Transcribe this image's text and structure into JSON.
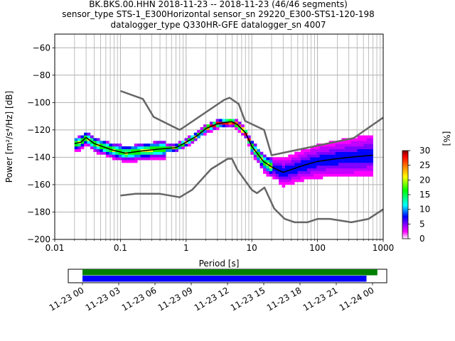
{
  "title": {
    "line1": "BK.BKS.00.HHN   2018-11-23 -- 2018-11-23  (46/46 segments)",
    "line2": "sensor_type STS-1_E300Horizontal sensor_sn 29220_E300-STS1-120-198",
    "line3": "datalogger_type Q330HR-GFE datalogger_sn 4007"
  },
  "chart_data": [
    {
      "type": "heatmap",
      "subtype": "ppsd",
      "xlabel": "Period [s]",
      "ylabel": "Power [m²/s⁴/Hz] [dB]",
      "xscale": "log",
      "xlim": [
        0.01,
        1000
      ],
      "ylim": [
        -200,
        -50
      ],
      "x_ticks": [
        0.01,
        0.1,
        1,
        10,
        100,
        1000
      ],
      "x_tick_labels": [
        "0.01",
        "0.1",
        "1",
        "10",
        "100",
        "1000"
      ],
      "y_ticks": [
        -200,
        -180,
        -160,
        -140,
        -120,
        -100,
        -80,
        -60
      ],
      "y_tick_labels": [
        "−200",
        "−180",
        "−160",
        "−140",
        "−120",
        "−100",
        "−80",
        "−60"
      ],
      "grid": true,
      "colorbar": {
        "label": "[%]",
        "range": [
          0,
          30
        ],
        "ticks": [
          0,
          5,
          10,
          15,
          20,
          25,
          30
        ],
        "tick_labels": [
          "0",
          "5",
          "10",
          "15",
          "20",
          "25",
          "30"
        ],
        "colors": [
          "#ffffff",
          "#ff00ff",
          "#0000ff",
          "#00ffff",
          "#00ff00",
          "#ffff00",
          "#ff8000",
          "#ff0000",
          "#800000"
        ]
      },
      "series": [
        {
          "name": "",
          "role": "noise-model-high",
          "color": "#666666",
          "x": [
            0.1,
            0.22,
            0.32,
            0.8,
            3.8,
            4.6,
            6.3,
            7.9,
            15.4,
            20,
            354.8,
            1000
          ],
          "y": [
            -91.5,
            -97.4,
            -110.5,
            -120,
            -98,
            -96.5,
            -101,
            -113.5,
            -120,
            -138.5,
            -126,
            -111
          ]
        },
        {
          "name": "",
          "role": "noise-model-low",
          "color": "#666666",
          "x": [
            0.1,
            0.17,
            0.4,
            0.8,
            1.24,
            2.4,
            4.3,
            5,
            6,
            10,
            12,
            15.6,
            21.9,
            31.6,
            45,
            70,
            101,
            154,
            328,
            600,
            1000
          ],
          "y": [
            -168,
            -166.7,
            -166.7,
            -169.2,
            -163.7,
            -148.6,
            -141.1,
            -141.1,
            -149,
            -163.8,
            -166.2,
            -162.1,
            -177.5,
            -185,
            -187.5,
            -187.5,
            -185,
            -185,
            -187.5,
            -185,
            -178
          ]
        },
        {
          "name": "",
          "role": "mean",
          "color": "#000000",
          "x": [
            0.02,
            0.025,
            0.03,
            0.04,
            0.06,
            0.08,
            0.12,
            0.2,
            0.4,
            0.7,
            1,
            1.5,
            2,
            3,
            4,
            5,
            6,
            8,
            10,
            15,
            20,
            30,
            40,
            60,
            100,
            200,
            400,
            700
          ],
          "y": [
            -130,
            -129,
            -125.5,
            -130,
            -133,
            -135,
            -137,
            -135.5,
            -134,
            -133,
            -129,
            -124,
            -119,
            -115.5,
            -114.5,
            -114,
            -116,
            -122,
            -132,
            -143,
            -147,
            -151,
            -149,
            -146,
            -143,
            -141,
            -139.5,
            -138.5
          ]
        }
      ],
      "data_coverage": {
        "time_axis": {
          "ticks": [
            "11-23 00",
            "11-23 03",
            "11-23 06",
            "11-23 09",
            "11-23 12",
            "11-23 15",
            "11-23 18",
            "11-23 21",
            "11-24 00"
          ]
        },
        "bars": [
          {
            "role": "data-available",
            "color": "#008000",
            "start_hours": 0,
            "end_hours": 24.4
          },
          {
            "role": "segments-used",
            "color": "#0000ff",
            "start_hours": 0,
            "end_hours": 23.5
          }
        ]
      }
    }
  ]
}
